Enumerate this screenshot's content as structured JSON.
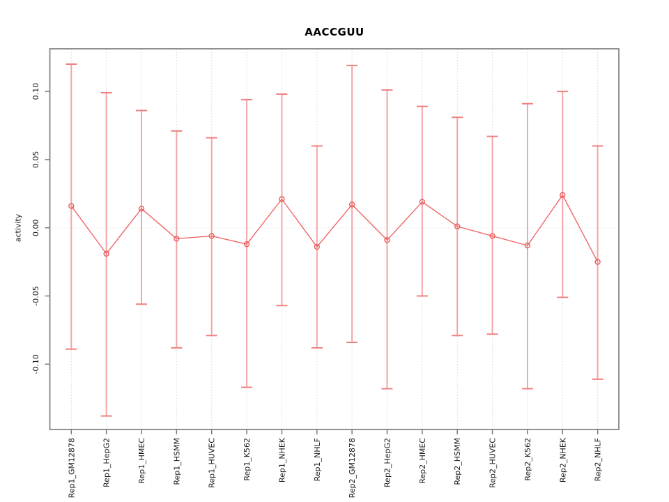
{
  "title": "AACCGUU",
  "colors": {
    "series_line": "#ef6868",
    "point_stroke": "#e85c5c",
    "error_bar_line": "#f5a5a5",
    "error_bar_cap": "#f08080",
    "grid_line": "#e0e0e0",
    "zero_line": "#dcdcdc",
    "box_border": "#909090",
    "tick_mark": "#7a7a7a",
    "label_text": "#1a1a1a"
  },
  "chart_data": {
    "type": "line",
    "title": "AACCGUU",
    "xlabel": "",
    "ylabel": "activity",
    "point_style": "open-circle",
    "error_bars": true,
    "grid": "dashed vertical line per category; dotted horizontal line at y=0",
    "legend_position": "none",
    "ylim": [
      -0.148,
      0.131
    ],
    "categories": [
      "Rep1_GM12878",
      "Rep1_HepG2",
      "Rep1_HMEC",
      "Rep1_HSMM",
      "Rep1_HUVEC",
      "Rep1_K562",
      "Rep1_NHEK",
      "Rep1_NHLF",
      "Rep2_GM12878",
      "Rep2_HepG2",
      "Rep2_HMEC",
      "Rep2_HSMM",
      "Rep2_HUVEC",
      "Rep2_K562",
      "Rep2_NHEK",
      "Rep2_NHLF"
    ],
    "series": [
      {
        "name": "activity",
        "values": [
          0.016,
          -0.019,
          0.014,
          -0.008,
          -0.006,
          -0.012,
          0.021,
          -0.014,
          0.017,
          -0.009,
          0.019,
          0.001,
          -0.006,
          -0.013,
          0.024,
          -0.025
        ],
        "upper": [
          0.12,
          0.099,
          0.086,
          0.071,
          0.066,
          0.094,
          0.098,
          0.06,
          0.119,
          0.101,
          0.089,
          0.081,
          0.067,
          0.091,
          0.1,
          0.06
        ],
        "lower": [
          -0.089,
          -0.138,
          -0.056,
          -0.088,
          -0.079,
          -0.117,
          -0.057,
          -0.088,
          -0.084,
          -0.118,
          -0.05,
          -0.079,
          -0.078,
          -0.118,
          -0.051,
          -0.111
        ]
      }
    ],
    "yticks": [
      {
        "value": -0.1,
        "label": "-0.10"
      },
      {
        "value": -0.05,
        "label": "-0.05"
      },
      {
        "value": 0.0,
        "label": "0.00"
      },
      {
        "value": 0.05,
        "label": "0.05"
      },
      {
        "value": 0.1,
        "label": "0.10"
      }
    ]
  }
}
